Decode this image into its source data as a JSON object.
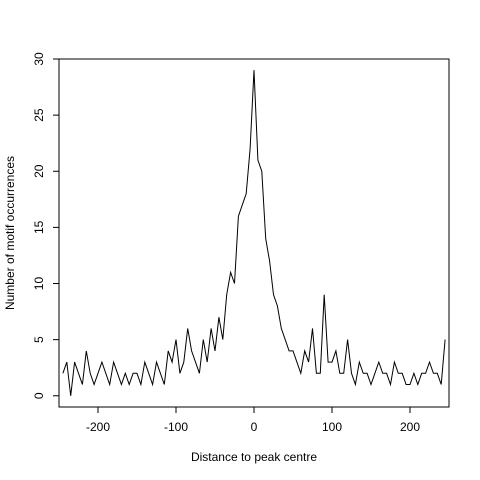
{
  "chart_data": {
    "type": "line",
    "xlabel": "Distance to peak centre",
    "ylabel": "Number of motif occurrences",
    "xlim": [
      -250,
      250
    ],
    "ylim": [
      -1,
      30
    ],
    "xticks": [
      -200,
      -100,
      0,
      100,
      200
    ],
    "xtick_labels": [
      "-200",
      "-100",
      "0",
      "100",
      "200"
    ],
    "yticks": [
      0,
      5,
      10,
      15,
      20,
      25,
      30
    ],
    "ytick_labels": [
      "0",
      "5",
      "10",
      "15",
      "20",
      "25",
      "30"
    ],
    "grid": false,
    "legend": "none",
    "colors": {
      "line": "#000000",
      "axes": "#000000",
      "background": "#ffffff"
    },
    "series": [
      {
        "x": [
          -245,
          -240,
          -235,
          -230,
          -225,
          -220,
          -215,
          -210,
          -205,
          -200,
          -195,
          -190,
          -185,
          -180,
          -175,
          -170,
          -165,
          -160,
          -155,
          -150,
          -145,
          -140,
          -135,
          -130,
          -125,
          -120,
          -115,
          -110,
          -105,
          -100,
          -95,
          -90,
          -85,
          -80,
          -75,
          -70,
          -65,
          -60,
          -55,
          -50,
          -45,
          -40,
          -35,
          -30,
          -25,
          -20,
          -15,
          -10,
          -5,
          0,
          5,
          10,
          15,
          20,
          25,
          30,
          35,
          40,
          45,
          50,
          55,
          60,
          65,
          70,
          75,
          80,
          85,
          90,
          95,
          100,
          105,
          110,
          115,
          120,
          125,
          130,
          135,
          140,
          145,
          150,
          155,
          160,
          165,
          170,
          175,
          180,
          185,
          190,
          195,
          200,
          205,
          210,
          215,
          220,
          225,
          230,
          235,
          240,
          245
        ],
        "y": [
          2,
          3,
          0,
          3,
          2,
          1,
          4,
          2,
          1,
          2,
          3,
          2,
          1,
          3,
          2,
          1,
          2,
          1,
          2,
          2,
          1,
          3,
          2,
          1,
          3,
          2,
          1,
          4,
          3,
          5,
          2,
          3,
          6,
          4,
          3,
          2,
          5,
          3,
          6,
          4,
          7,
          5,
          9,
          11,
          10,
          16,
          17,
          18,
          22,
          29,
          21,
          20,
          14,
          12,
          9,
          8,
          6,
          5,
          4,
          4,
          3,
          2,
          4,
          3,
          6,
          2,
          2,
          9,
          3,
          3,
          4,
          2,
          2,
          5,
          2,
          1,
          3,
          2,
          2,
          1,
          2,
          3,
          2,
          2,
          1,
          3,
          2,
          2,
          1,
          1,
          2,
          1,
          2,
          2,
          3,
          2,
          2,
          1,
          5
        ]
      }
    ]
  }
}
